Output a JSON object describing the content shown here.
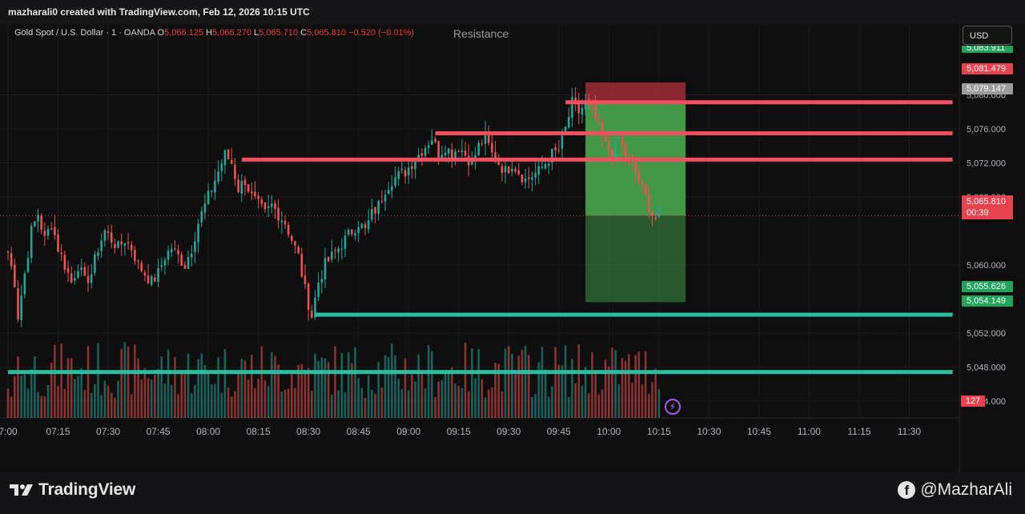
{
  "header": {
    "title": "mazharali0 created with TradingView.com, Feb 12, 2026 10:15 UTC"
  },
  "legend": {
    "symbol": "Gold Spot / U.S. Dollar · 1 · OANDA",
    "o_label": "O",
    "o": "5,066.125",
    "h_label": "H",
    "h": "5,066.270",
    "l_label": "L",
    "l": "5,065.710",
    "c_label": "C",
    "c": "5,065.810",
    "change": "−0.520 (−0.01%)"
  },
  "annotation": "Resistance",
  "currency_button": "USD",
  "price_tags": {
    "top_partial": "5,083.911",
    "stop": "5,081.479",
    "entry": "5,079.147",
    "current": "5,065.810",
    "countdown": "00:39",
    "target": "5,055.626",
    "support": "5,054.149",
    "volume": "127"
  },
  "footer": {
    "brand": "TradingView",
    "watermark": "@MazharAli"
  },
  "colors": {
    "up": "#26a69a",
    "down": "#ef5350",
    "resistance": "#f05060",
    "support": "#2bbf9e",
    "profit_zone": "#4caf50",
    "loss_zone": "#b2313d"
  },
  "chart_data": {
    "type": "candlestick",
    "symbol": "XAUUSD",
    "timeframe": "1",
    "ylim": [
      5042.0,
      5086.0
    ],
    "y_ticks": [
      "5,080.000",
      "5,076.000",
      "5,072.000",
      "5,068.000",
      "5,060.000",
      "5,052.000",
      "5,048.000",
      "5,044.000"
    ],
    "x_ticks": [
      "7:00",
      "07:15",
      "07:30",
      "07:45",
      "08:00",
      "08:15",
      "08:30",
      "08:45",
      "09:00",
      "09:15",
      "09:30",
      "09:45",
      "10:00",
      "10:15",
      "10:30",
      "10:45",
      "11:00",
      "11:15",
      "11:30"
    ],
    "x_range": [
      "07:00",
      "11:45"
    ],
    "path": [
      [
        "07:00",
        5061.5
      ],
      [
        "07:02",
        5058
      ],
      [
        "07:03",
        5054
      ],
      [
        "07:05",
        5059
      ],
      [
        "07:07",
        5064
      ],
      [
        "07:09",
        5066
      ],
      [
        "07:11",
        5063
      ],
      [
        "07:13",
        5065
      ],
      [
        "07:15",
        5062
      ],
      [
        "07:17",
        5060
      ],
      [
        "07:19",
        5058
      ],
      [
        "07:21",
        5060
      ],
      [
        "07:23",
        5058
      ],
      [
        "07:25",
        5059
      ],
      [
        "07:27",
        5062
      ],
      [
        "07:29",
        5064
      ],
      [
        "07:31",
        5063
      ],
      [
        "07:33",
        5062
      ],
      [
        "07:35",
        5063
      ],
      [
        "07:37",
        5062
      ],
      [
        "07:39",
        5060
      ],
      [
        "07:41",
        5059
      ],
      [
        "07:43",
        5058
      ],
      [
        "07:45",
        5059
      ],
      [
        "07:47",
        5061
      ],
      [
        "07:49",
        5062
      ],
      [
        "07:51",
        5061
      ],
      [
        "07:53",
        5060
      ],
      [
        "07:55",
        5062
      ],
      [
        "07:57",
        5065
      ],
      [
        "07:59",
        5067
      ],
      [
        "08:01",
        5069
      ],
      [
        "08:03",
        5071
      ],
      [
        "08:05",
        5073
      ],
      [
        "08:07",
        5072
      ],
      [
        "08:09",
        5069
      ],
      [
        "08:11",
        5070
      ],
      [
        "08:13",
        5068
      ],
      [
        "08:15",
        5067
      ],
      [
        "08:17",
        5066
      ],
      [
        "08:19",
        5067
      ],
      [
        "08:21",
        5066
      ],
      [
        "08:23",
        5065
      ],
      [
        "08:25",
        5063
      ],
      [
        "08:27",
        5061
      ],
      [
        "08:29",
        5057
      ],
      [
        "08:31",
        5054
      ],
      [
        "08:33",
        5058
      ],
      [
        "08:35",
        5060
      ],
      [
        "08:37",
        5061
      ],
      [
        "08:39",
        5062
      ],
      [
        "08:41",
        5063
      ],
      [
        "08:43",
        5064
      ],
      [
        "08:45",
        5065
      ],
      [
        "08:47",
        5064
      ],
      [
        "08:49",
        5066
      ],
      [
        "08:51",
        5067
      ],
      [
        "08:53",
        5069
      ],
      [
        "08:55",
        5070
      ],
      [
        "08:57",
        5070.5
      ],
      [
        "08:59",
        5071
      ],
      [
        "09:01",
        5072
      ],
      [
        "09:03",
        5073
      ],
      [
        "09:05",
        5074
      ],
      [
        "09:07",
        5075
      ],
      [
        "09:09",
        5073
      ],
      [
        "09:11",
        5074
      ],
      [
        "09:13",
        5073
      ],
      [
        "09:15",
        5074
      ],
      [
        "09:17",
        5073
      ],
      [
        "09:19",
        5072
      ],
      [
        "09:21",
        5074
      ],
      [
        "09:23",
        5075
      ],
      [
        "09:25",
        5073
      ],
      [
        "09:27",
        5072
      ],
      [
        "09:29",
        5071
      ],
      [
        "09:31",
        5072
      ],
      [
        "09:33",
        5071
      ],
      [
        "09:35",
        5070
      ],
      [
        "09:37",
        5070.5
      ],
      [
        "09:39",
        5071
      ],
      [
        "09:41",
        5072
      ],
      [
        "09:43",
        5073
      ],
      [
        "09:45",
        5073.5
      ],
      [
        "09:47",
        5076
      ],
      [
        "09:49",
        5079
      ],
      [
        "09:51",
        5078
      ],
      [
        "09:53",
        5079
      ],
      [
        "09:55",
        5078
      ],
      [
        "09:57",
        5076
      ],
      [
        "09:59",
        5074
      ],
      [
        "10:01",
        5073
      ],
      [
        "10:03",
        5075
      ],
      [
        "10:05",
        5073
      ],
      [
        "10:07",
        5072
      ],
      [
        "10:09",
        5070
      ],
      [
        "10:11",
        5068
      ],
      [
        "10:13",
        5066
      ],
      [
        "10:14",
        5065.5
      ],
      [
        "10:15",
        5065.8
      ]
    ],
    "horizontal_lines": [
      {
        "price": 5079.147,
        "from": "09:47",
        "to": "11:43",
        "color": "red"
      },
      {
        "price": 5075.5,
        "from": "09:08",
        "to": "11:43",
        "color": "red"
      },
      {
        "price": 5072.4,
        "from": "08:10",
        "to": "11:43",
        "color": "red"
      },
      {
        "price": 5054.149,
        "from": "08:32",
        "to": "11:43",
        "color": "teal"
      },
      {
        "price": 5047.4,
        "from": "07:00",
        "to": "11:43",
        "color": "teal"
      }
    ],
    "short_position": {
      "from": "09:53",
      "to": "10:23",
      "entry": 5079.147,
      "stop": 5081.479,
      "target": 5055.626,
      "current": 5065.81
    },
    "volume_last": 127
  }
}
